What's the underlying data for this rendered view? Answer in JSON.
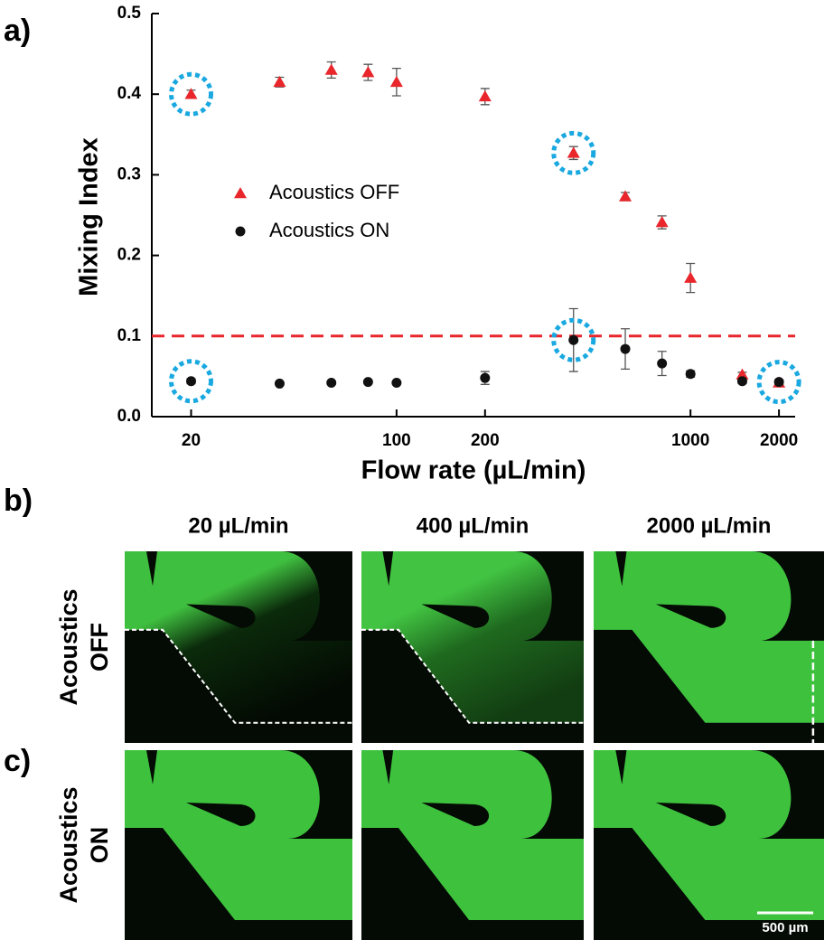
{
  "chart_data": {
    "type": "scatter",
    "xlabel": "Flow rate (µL/min)",
    "ylabel": "Mixing Index",
    "x": [
      20,
      40,
      60,
      80,
      100,
      200,
      400,
      600,
      800,
      1000,
      1500,
      2000
    ],
    "series": [
      {
        "name": "Acoustics OFF",
        "color": "#e8262b",
        "marker": "triangle",
        "values": [
          0.4,
          0.415,
          0.43,
          0.427,
          0.415,
          0.397,
          0.327,
          0.273,
          0.241,
          0.172,
          0.052,
          0.042
        ],
        "errors": [
          0.005,
          0.006,
          0.01,
          0.01,
          0.017,
          0.01,
          0.008,
          0.005,
          0.008,
          0.018,
          0.003,
          0.003
        ]
      },
      {
        "name": "Acoustics ON",
        "color": "#111111",
        "marker": "circle",
        "values": [
          0.044,
          0.041,
          0.042,
          0.043,
          0.042,
          0.048,
          0.095,
          0.084,
          0.066,
          0.053,
          0.044,
          0.043
        ],
        "errors": [
          0.003,
          0.002,
          0.002,
          0.002,
          0.002,
          0.008,
          0.039,
          0.025,
          0.015,
          0.004,
          0.003,
          0.003
        ]
      }
    ],
    "xscale": "log",
    "xlim": [
      14.7,
      2270
    ],
    "ylim": [
      0,
      0.5
    ],
    "xticks": [
      20,
      100,
      200,
      1000,
      2000
    ],
    "yticks": [
      {
        "value": 0,
        "label": "0.0"
      },
      0.1,
      0.2,
      0.3,
      0.4,
      0.5
    ],
    "hline": {
      "value": 0.1,
      "color": "#e8262b"
    },
    "legend": "center-left",
    "grid": false
  },
  "panels": {
    "labels": [
      "a)",
      "b)",
      "c)"
    ],
    "column_headers": [
      "20 µL/min",
      "400 µL/min",
      "2000 µL/min"
    ],
    "row_labels": [
      [
        "Acoustics",
        "OFF"
      ],
      [
        "Acoustics",
        "ON"
      ]
    ],
    "scale_bar": "500 µm"
  }
}
